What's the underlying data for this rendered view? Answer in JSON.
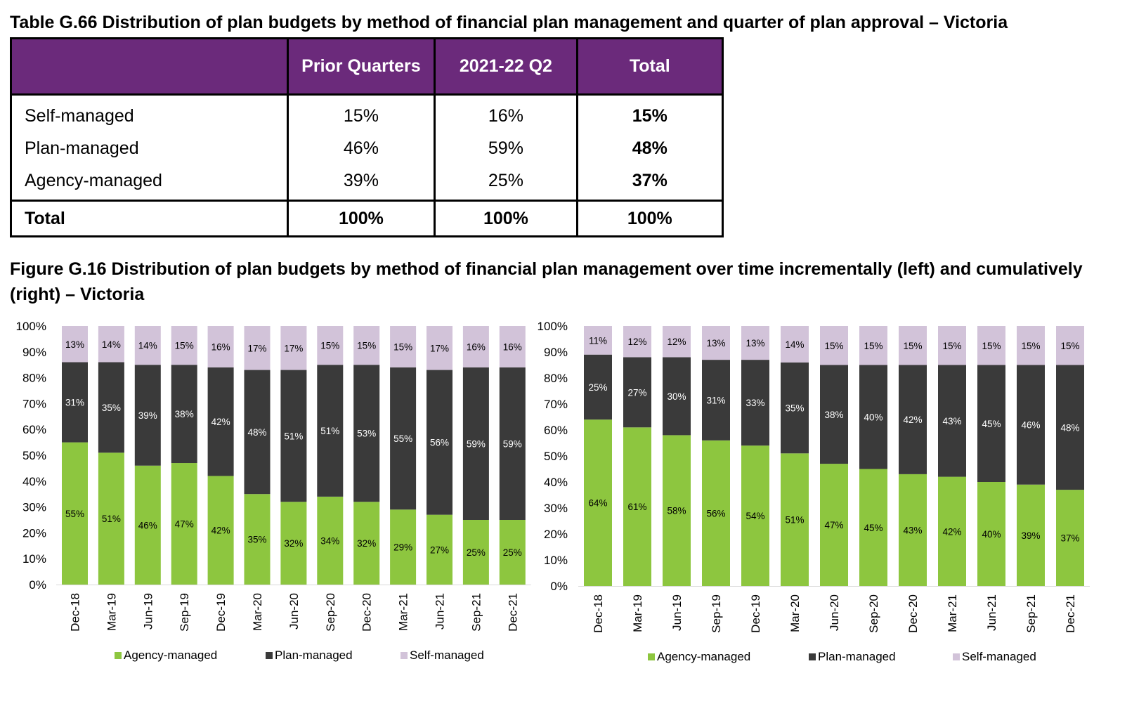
{
  "table": {
    "title": "Table G.66 Distribution of plan budgets by method of financial plan management and quarter of plan approval – Victoria",
    "headers": [
      "",
      "Prior Quarters",
      "2021-22 Q2",
      "Total"
    ],
    "rows": [
      {
        "label": "Self-managed",
        "prior": "15%",
        "q2": "16%",
        "total": "15%"
      },
      {
        "label": "Plan-managed",
        "prior": "46%",
        "q2": "59%",
        "total": "48%"
      },
      {
        "label": "Agency-managed",
        "prior": "39%",
        "q2": "25%",
        "total": "37%"
      }
    ],
    "total_row": {
      "label": "Total",
      "prior": "100%",
      "q2": "100%",
      "total": "100%"
    }
  },
  "figure": {
    "title": "Figure G.16 Distribution of plan budgets by method of financial plan management over time incrementally (left) and cumulatively (right) – Victoria"
  },
  "colors": {
    "header_purple": "#6b2a7b",
    "agency": "#8dc63f",
    "plan": "#3a3a3a",
    "self": "#d2c3d9"
  },
  "chart_data": [
    {
      "type": "bar",
      "stacked": true,
      "title": "",
      "categories": [
        "Dec-18",
        "Mar-19",
        "Jun-19",
        "Sep-19",
        "Dec-19",
        "Mar-20",
        "Jun-20",
        "Sep-20",
        "Dec-20",
        "Mar-21",
        "Jun-21",
        "Sep-21",
        "Dec-21"
      ],
      "series": [
        {
          "name": "Agency-managed",
          "values": [
            55,
            51,
            46,
            47,
            42,
            35,
            32,
            34,
            32,
            29,
            27,
            25,
            25
          ]
        },
        {
          "name": "Plan-managed",
          "values": [
            31,
            35,
            39,
            38,
            42,
            48,
            51,
            51,
            53,
            55,
            56,
            59,
            59
          ]
        },
        {
          "name": "Self-managed",
          "values": [
            13,
            14,
            14,
            15,
            16,
            17,
            17,
            15,
            15,
            15,
            17,
            16,
            16
          ]
        }
      ],
      "yticks": [
        "0%",
        "10%",
        "20%",
        "30%",
        "40%",
        "50%",
        "60%",
        "70%",
        "80%",
        "90%",
        "100%"
      ],
      "ylim": [
        0,
        100
      ],
      "legend_position": "bottom"
    },
    {
      "type": "bar",
      "stacked": true,
      "title": "",
      "categories": [
        "Dec-18",
        "Mar-19",
        "Jun-19",
        "Sep-19",
        "Dec-19",
        "Mar-20",
        "Jun-20",
        "Sep-20",
        "Dec-20",
        "Mar-21",
        "Jun-21",
        "Sep-21",
        "Dec-21"
      ],
      "series": [
        {
          "name": "Agency-managed",
          "values": [
            64,
            61,
            58,
            56,
            54,
            51,
            47,
            45,
            43,
            42,
            40,
            39,
            37
          ]
        },
        {
          "name": "Plan-managed",
          "values": [
            25,
            27,
            30,
            31,
            33,
            35,
            38,
            40,
            42,
            43,
            45,
            46,
            48
          ]
        },
        {
          "name": "Self-managed",
          "values": [
            11,
            12,
            12,
            13,
            13,
            14,
            15,
            15,
            15,
            15,
            15,
            15,
            15
          ]
        }
      ],
      "yticks": [
        "0%",
        "10%",
        "20%",
        "30%",
        "40%",
        "50%",
        "60%",
        "70%",
        "80%",
        "90%",
        "100%"
      ],
      "ylim": [
        0,
        100
      ],
      "legend_position": "bottom"
    }
  ]
}
